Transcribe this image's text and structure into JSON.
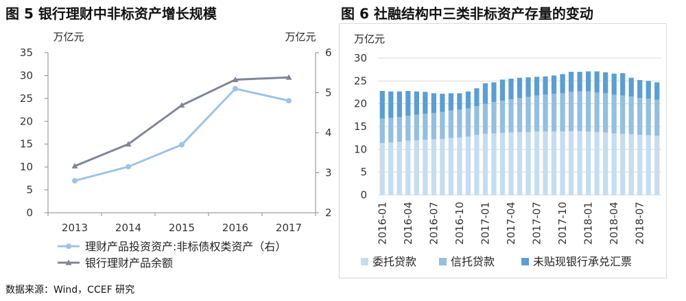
{
  "chart_data": [
    {
      "type": "line",
      "title": "图 5 银行理财中非标资产增长规模",
      "categories": [
        "2013",
        "2014",
        "2015",
        "2016",
        "2017"
      ],
      "left_unit": "万亿元",
      "right_unit": "万亿元",
      "ylim_left": [
        0,
        35
      ],
      "ylim_right": [
        2,
        6
      ],
      "left_ticks": [
        "0",
        "5",
        "10",
        "15",
        "20",
        "25",
        "30",
        "35"
      ],
      "right_ticks": [
        "2",
        "3",
        "4",
        "5",
        "6"
      ],
      "series": [
        {
          "name": "理财产品投资资产:非标债权类资产（右）",
          "axis": "right",
          "color": "#9dc3e6",
          "values": [
            2.8,
            3.15,
            3.7,
            5.1,
            4.8
          ]
        },
        {
          "name": "银行理财产品余额",
          "axis": "left",
          "color": "#7f8596",
          "values": [
            10.2,
            15.0,
            23.5,
            29.1,
            29.6
          ]
        }
      ]
    },
    {
      "type": "bar",
      "stacked": true,
      "title": "图 6 社融结构中三类非标资产存量的变动",
      "ylabel": "万亿元",
      "ylim": [
        0,
        30
      ],
      "y_ticks": [
        "0",
        "5",
        "10",
        "15",
        "20",
        "25",
        "30"
      ],
      "categories": [
        "2016-01",
        "2016-02",
        "2016-03",
        "2016-04",
        "2016-05",
        "2016-06",
        "2016-07",
        "2016-08",
        "2016-09",
        "2016-10",
        "2016-11",
        "2016-12",
        "2017-01",
        "2017-02",
        "2017-03",
        "2017-04",
        "2017-05",
        "2017-06",
        "2017-07",
        "2017-08",
        "2017-09",
        "2017-10",
        "2017-11",
        "2017-12",
        "2018-01",
        "2018-02",
        "2018-03",
        "2018-04",
        "2018-05",
        "2018-06",
        "2018-07",
        "2018-08",
        "2018-09"
      ],
      "tick_labels": [
        "2016-01",
        "2016-04",
        "2016-07",
        "2016-10",
        "2017-01",
        "2017-04",
        "2017-07",
        "2017-10",
        "2018-01",
        "2018-04",
        "2018-07"
      ],
      "series": [
        {
          "name": "委托贷款",
          "color": "#c5ddef",
          "values": [
            11.4,
            11.5,
            11.7,
            11.9,
            12.0,
            12.1,
            12.2,
            12.3,
            12.5,
            12.6,
            12.8,
            13.2,
            13.4,
            13.5,
            13.6,
            13.7,
            13.8,
            13.8,
            13.9,
            13.9,
            13.9,
            13.9,
            14.0,
            14.0,
            13.9,
            13.8,
            13.7,
            13.5,
            13.4,
            13.3,
            13.2,
            13.1,
            13.0
          ]
        },
        {
          "name": "信托贷款",
          "color": "#94bfdf",
          "values": [
            5.4,
            5.4,
            5.4,
            5.5,
            5.6,
            5.7,
            5.8,
            5.9,
            6.0,
            6.1,
            6.2,
            6.3,
            6.6,
            6.9,
            7.1,
            7.3,
            7.5,
            7.7,
            7.9,
            8.1,
            8.3,
            8.4,
            8.6,
            8.7,
            8.8,
            8.7,
            8.6,
            8.5,
            8.4,
            8.3,
            8.1,
            8.0,
            7.9
          ]
        },
        {
          "name": "未贴现银行承兑汇票",
          "color": "#5b9ed2",
          "values": [
            6.0,
            5.8,
            5.6,
            5.4,
            5.1,
            4.8,
            4.3,
            4.0,
            3.8,
            3.6,
            3.7,
            3.9,
            4.5,
            4.3,
            4.6,
            4.5,
            4.4,
            4.3,
            4.1,
            4.0,
            4.0,
            4.2,
            4.4,
            4.3,
            4.4,
            4.6,
            4.6,
            4.6,
            4.9,
            4.1,
            3.9,
            3.9,
            3.8
          ]
        }
      ]
    }
  ],
  "source": "数据来源：Wind，CCEF 研究"
}
